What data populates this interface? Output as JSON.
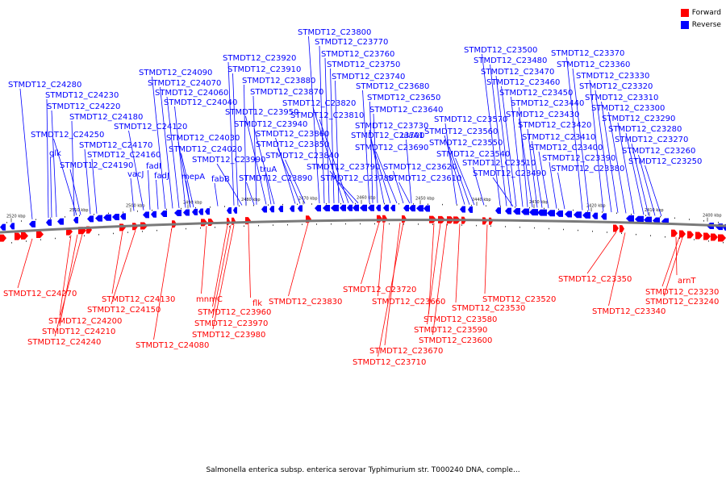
{
  "legend": {
    "forward_label": "Forward",
    "reverse_label": "Reverse",
    "forward_color": "#ff0000",
    "reverse_color": "#0000ff"
  },
  "axis": {
    "ticks": [
      "2520 kbp",
      "2510 kbp",
      "2500 kbp",
      "2490 kbp",
      "2480 kbp",
      "2470 kbp",
      "2460 kbp",
      "2450 kbp",
      "2440 kbp",
      "2430 kbp",
      "2420 kbp",
      "2410 kbp",
      "2400 kbp"
    ]
  },
  "caption": "Salmonella enterica subsp. enterica serovar Typhimurium str. T000240 DNA, comple...",
  "reverse_labels": [
    "STMDT12_C24280",
    "STMDT12_C24230",
    "STMDT12_C24220",
    "STMDT12_C24180",
    "STMDT12_C24250",
    "glk",
    "STMDT12_C24170",
    "STMDT12_C24160",
    "STMDT12_C24190",
    "vacJ",
    "STMDT12_C24120",
    "fadI",
    "fadJ",
    "STMDT12_C24090",
    "STMDT12_C24070",
    "STMDT12_C24060",
    "STMDT12_C24040",
    "STMDT12_C24030",
    "STMDT12_C24020",
    "mepA",
    "fabB",
    "STMDT12_C23920",
    "STMDT12_C23910",
    "STMDT12_C23880",
    "STMDT12_C23870",
    "STMDT12_C23950",
    "STMDT12_C23940",
    "STMDT12_C23990",
    "truA",
    "STMDT12_C23890",
    "STMDT12_C23860",
    "STMDT12_C23850",
    "STMDT12_C23840",
    "STMDT12_C23800",
    "STMDT12_C23770",
    "STMDT12_C23760",
    "STMDT12_C23750",
    "STMDT12_C23740",
    "STMDT12_C23820",
    "STMDT12_C23810",
    "STMDT12_C23790",
    "STMDT12_C23780",
    "STMDT12_C23680",
    "STMDT12_C23650",
    "STMDT12_C23640",
    "STMDT12_C23730",
    "STMDT12_C23700",
    "STMDT12_C23690",
    "ulaA1",
    "STMDT12_C23620",
    "STMDT12_C23610",
    "STMDT12_C23570",
    "STMDT12_C23560",
    "STMDT12_C23550",
    "STMDT12_C23540",
    "STMDT12_C23510",
    "STMDT12_C23500",
    "STMDT12_C23480",
    "STMDT12_C23470",
    "STMDT12_C23460",
    "STMDT12_C23450",
    "STMDT12_C23440",
    "STMDT12_C23430",
    "STMDT12_C23420",
    "STMDT12_C23410",
    "STMDT12_C23400",
    "STMDT12_C23490",
    "STMDT12_C23390",
    "STMDT12_C23380",
    "STMDT12_C23370",
    "STMDT12_C23360",
    "STMDT12_C23330",
    "STMDT12_C23320",
    "STMDT12_C23310",
    "STMDT12_C23300",
    "STMDT12_C23290",
    "STMDT12_C23280",
    "STMDT12_C23270",
    "STMDT12_C23260",
    "STMDT12_C23250"
  ],
  "forward_labels": [
    "STMDT12_C24270",
    "STMDT12_C24200",
    "STMDT12_C24210",
    "STMDT12_C24240",
    "STMDT12_C24130",
    "STMDT12_C24150",
    "STMDT12_C24080",
    "mnmC",
    "STMDT12_C23960",
    "STMDT12_C23970",
    "STMDT12_C23980",
    "flk",
    "STMDT12_C23830",
    "STMDT12_C23720",
    "STMDT12_C23660",
    "STMDT12_C23670",
    "STMDT12_C23710",
    "STMDT12_C23580",
    "STMDT12_C23590",
    "STMDT12_C23600",
    "STMDT12_C23530",
    "STMDT12_C23520",
    "STMDT12_C23350",
    "STMDT12_C23340",
    "arnT",
    "STMDT12_C23230",
    "STMDT12_C23240"
  ]
}
